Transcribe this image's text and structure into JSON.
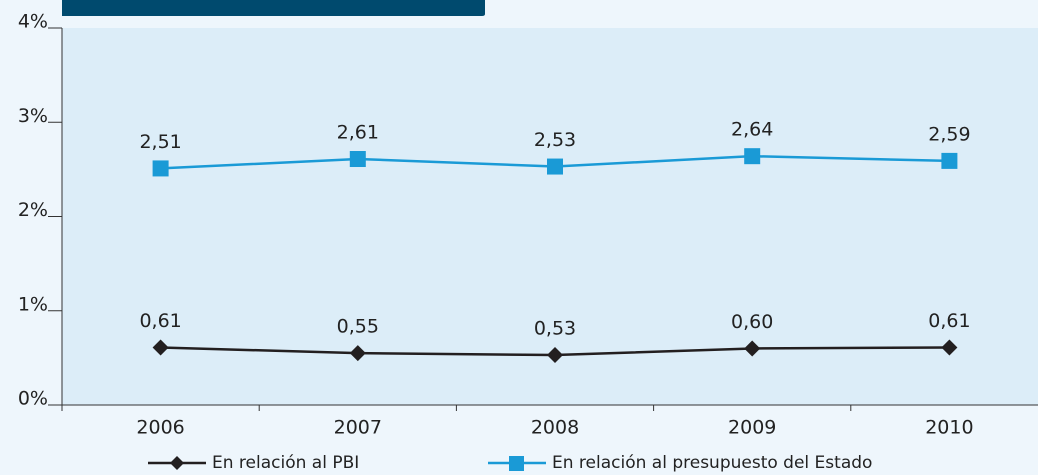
{
  "chart_data": {
    "type": "line",
    "categories": [
      "2006",
      "2007",
      "2008",
      "2009",
      "2010"
    ],
    "series": [
      {
        "name": "En relación al PBI",
        "color": "#231f20",
        "marker": "diamond",
        "values": [
          0.61,
          0.55,
          0.53,
          0.6,
          0.61
        ],
        "value_labels": [
          "0,61",
          "0,55",
          "0,53",
          "0,60",
          "0,61"
        ]
      },
      {
        "name": "En relación al presupuesto del Estado",
        "color": "#1a9ad6",
        "marker": "square",
        "values": [
          2.51,
          2.61,
          2.53,
          2.64,
          2.59
        ],
        "value_labels": [
          "2,51",
          "2,61",
          "2,53",
          "2,64",
          "2,59"
        ]
      }
    ],
    "ylim": [
      0,
      4
    ],
    "yticks": [
      {
        "value": 0,
        "label": "0%"
      },
      {
        "value": 1,
        "label": "1%"
      },
      {
        "value": 2,
        "label": "2%"
      },
      {
        "value": 3,
        "label": "3%"
      },
      {
        "value": 4,
        "label": "4%"
      }
    ],
    "legend": "bottom"
  }
}
